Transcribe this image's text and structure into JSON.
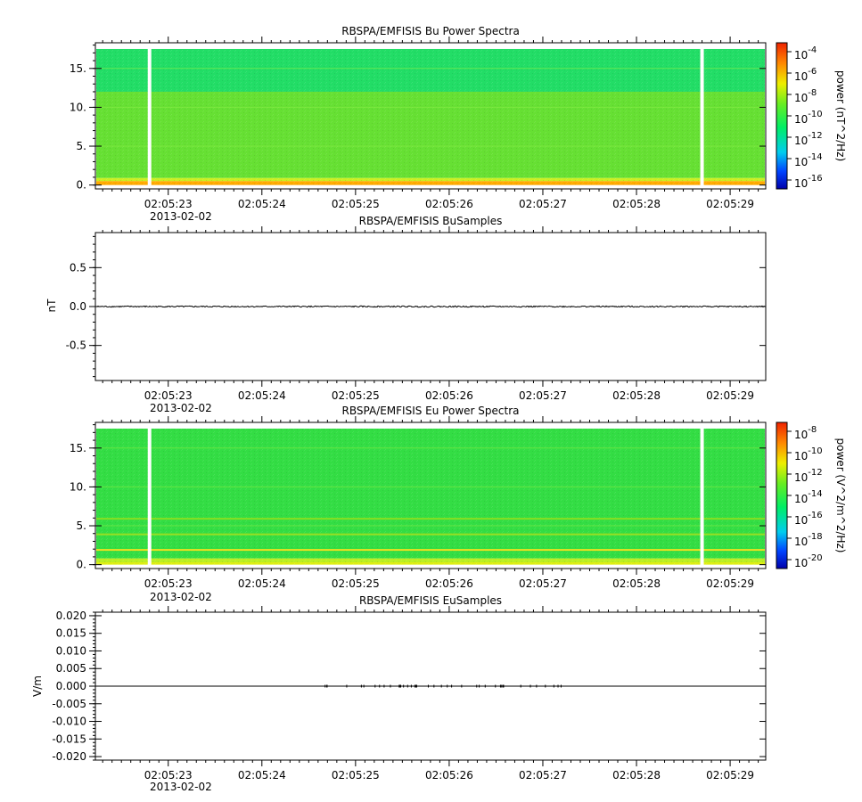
{
  "chart_data": [
    {
      "type": "heatmap",
      "title": "RBSPA/EMFISIS  Bu Power Spectra",
      "x_ticks": [
        "02:05:23",
        "02:05:24",
        "02:05:25",
        "02:05:26",
        "02:05:27",
        "02:05:28",
        "02:05:29"
      ],
      "x_date": "2013-02-02",
      "y_ticks": [
        "0.",
        "5.",
        "10.",
        "15."
      ],
      "ylim": [
        -0.5,
        18.3
      ],
      "data_top": 17.5,
      "gaps": [
        "02:05:22.8",
        "02:05:28.7"
      ],
      "colorbar": {
        "label": "power (nT^2/Hz)",
        "ticks": [
          {
            "base": "10",
            "exp": "-4"
          },
          {
            "base": "10",
            "exp": "-6"
          },
          {
            "base": "10",
            "exp": "-8"
          },
          {
            "base": "10",
            "exp": "-10"
          },
          {
            "base": "10",
            "exp": "-12"
          },
          {
            "base": "10",
            "exp": "-14"
          },
          {
            "base": "10",
            "exp": "-16"
          }
        ]
      },
      "bands": [
        {
          "from": 12.0,
          "to": 17.5,
          "color": "#22dd66"
        },
        {
          "from": 0.9,
          "to": 12.0,
          "color": "#66e033"
        },
        {
          "from": 0.5,
          "to": 0.9,
          "color": "#ccee22"
        },
        {
          "from": 0.0,
          "to": 0.5,
          "color": "#ffaa00"
        }
      ]
    },
    {
      "type": "line",
      "title": "RBSPA/EMFISIS  BuSamples",
      "ylabel": "nT",
      "x_ticks": [
        "02:05:23",
        "02:05:24",
        "02:05:25",
        "02:05:26",
        "02:05:27",
        "02:05:28",
        "02:05:29"
      ],
      "x_date": "2013-02-02",
      "y_ticks": [
        "-0.5",
        "0.0",
        "0.5"
      ],
      "ylim": [
        -0.95,
        0.95
      ],
      "series": [
        {
          "values_level": 0.0,
          "noise": 0.008
        }
      ]
    },
    {
      "type": "heatmap",
      "title": "RBSPA/EMFISIS  Eu Power Spectra",
      "x_ticks": [
        "02:05:23",
        "02:05:24",
        "02:05:25",
        "02:05:26",
        "02:05:27",
        "02:05:28",
        "02:05:29"
      ],
      "x_date": "2013-02-02",
      "y_ticks": [
        "0.",
        "5.",
        "10.",
        "15."
      ],
      "ylim": [
        -0.5,
        18.3
      ],
      "data_top": 17.5,
      "gaps": [
        "02:05:22.8",
        "02:05:28.7"
      ],
      "colorbar": {
        "label": "power (V^2/m^2/Hz)",
        "ticks": [
          {
            "base": "10",
            "exp": "-8"
          },
          {
            "base": "10",
            "exp": "-10"
          },
          {
            "base": "10",
            "exp": "-12"
          },
          {
            "base": "10",
            "exp": "-14"
          },
          {
            "base": "10",
            "exp": "-16"
          },
          {
            "base": "10",
            "exp": "-18"
          },
          {
            "base": "10",
            "exp": "-20"
          }
        ]
      },
      "bands": [
        {
          "from": 0.8,
          "to": 17.5,
          "color": "#33dd44"
        },
        {
          "from": 0.3,
          "to": 0.8,
          "color": "#bbee22"
        },
        {
          "from": 0.0,
          "to": 0.3,
          "color": "#ddee11"
        }
      ],
      "lines": [
        {
          "y": 1.9,
          "color": "#f0e020"
        },
        {
          "y": 3.9,
          "color": "#99e022"
        },
        {
          "y": 5.9,
          "color": "#88de22"
        }
      ]
    },
    {
      "type": "line",
      "title": "RBSPA/EMFISIS  EuSamples",
      "ylabel": "V/m",
      "x_ticks": [
        "02:05:23",
        "02:05:24",
        "02:05:25",
        "02:05:26",
        "02:05:27",
        "02:05:28",
        "02:05:29"
      ],
      "x_date": "2013-02-02",
      "y_ticks": [
        "-0.020",
        "-0.015",
        "-0.010",
        "-0.005",
        "0.000",
        "0.005",
        "0.010",
        "0.015",
        "0.020"
      ],
      "ylim": [
        -0.021,
        0.021
      ],
      "series": [
        {
          "values_level": 0.0,
          "noise": 0.0
        }
      ]
    }
  ]
}
